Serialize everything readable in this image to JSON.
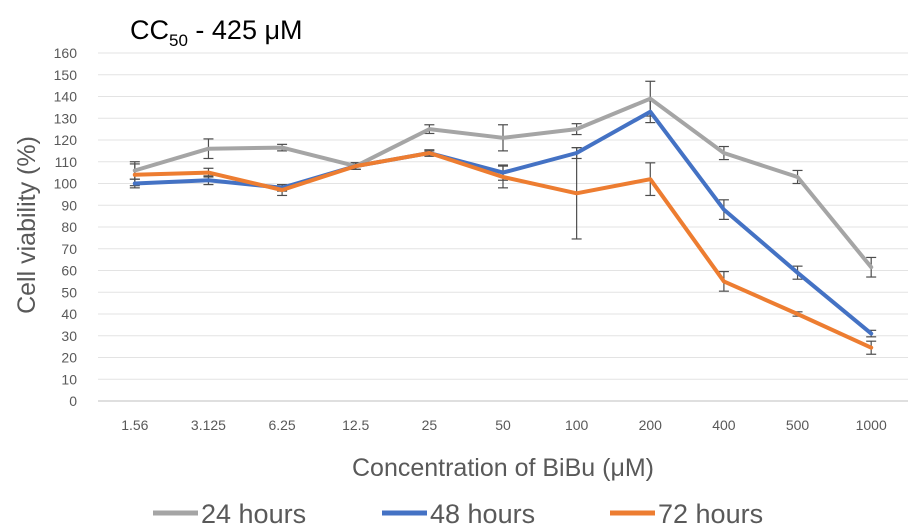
{
  "chart_data": {
    "type": "line",
    "title": {
      "main": "CC",
      "sub": "50",
      "rest": " - 425 μM"
    },
    "xlabel": "Concentration of BiBu (μM)",
    "ylabel": "Cell viability (%)",
    "ylim": [
      0,
      160
    ],
    "ytick_step": 10,
    "categories": [
      "1.56",
      "3.125",
      "6.25",
      "12.5",
      "25",
      "50",
      "100",
      "200",
      "400",
      "500",
      "1000"
    ],
    "grid": true,
    "legend_position": "bottom",
    "series": [
      {
        "name": "24 hours",
        "color": "#a5a5a5",
        "values": [
          106,
          116,
          116.5,
          108,
          125,
          121,
          125,
          139,
          114,
          103,
          61.5
        ],
        "errors": [
          4,
          4.5,
          1.5,
          1.5,
          2,
          6,
          2.5,
          8,
          3,
          3,
          4.5
        ]
      },
      {
        "name": "48 hours",
        "color": "#4472c4",
        "values": [
          100,
          101.5,
          98,
          108,
          114,
          105,
          114,
          133,
          88,
          59,
          31
        ],
        "errors": [
          2,
          2,
          1.5,
          1.5,
          1,
          3.5,
          2.5,
          5,
          4.5,
          3,
          1.5
        ]
      },
      {
        "name": "72 hours",
        "color": "#ed7d31",
        "values": [
          104,
          105,
          97,
          108,
          114,
          103,
          95.5,
          102,
          55,
          40,
          24.5
        ],
        "errors": [
          5,
          2,
          2.5,
          1.5,
          1.5,
          5,
          21,
          7.5,
          4.5,
          1,
          3
        ]
      }
    ]
  }
}
